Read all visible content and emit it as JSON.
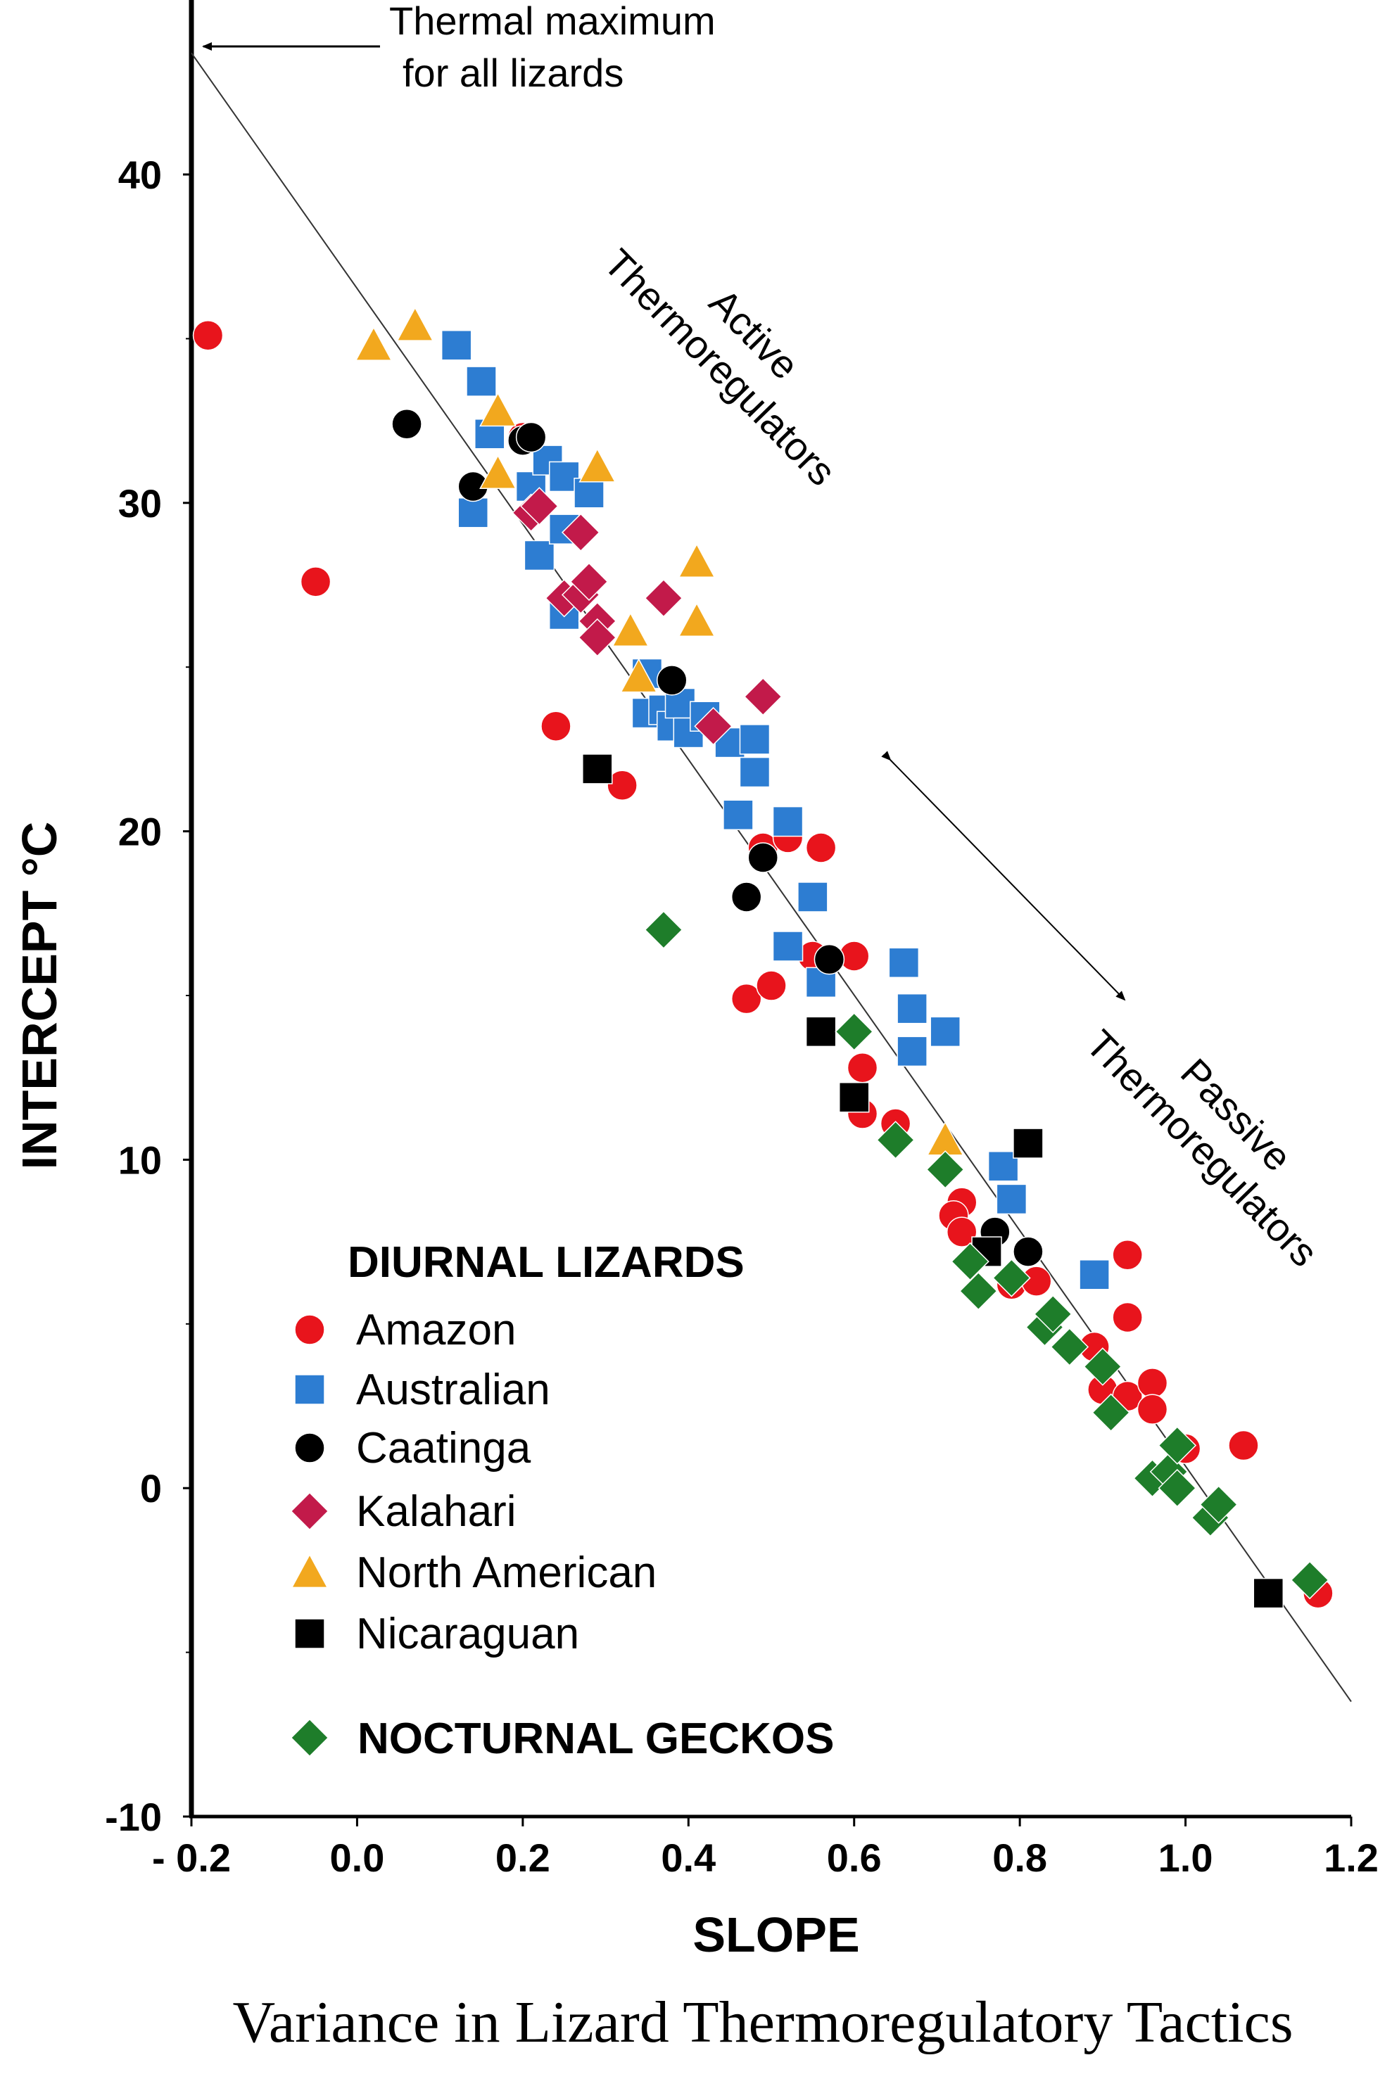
{
  "chart_data": {
    "type": "scatter",
    "title": "",
    "caption": "Variance in Lizard Thermoregulatory Tactics",
    "xlabel": "SLOPE",
    "ylabel": "INTERCEPT °C",
    "xlim": [
      -0.2,
      1.2
    ],
    "ylim": [
      -10,
      44
    ],
    "x_ticks": [
      {
        "value": -0.2,
        "label": "- 0.2"
      },
      {
        "value": 0.0,
        "label": "0.0"
      },
      {
        "value": 0.2,
        "label": "0.2"
      },
      {
        "value": 0.4,
        "label": "0.4"
      },
      {
        "value": 0.6,
        "label": "0.6"
      },
      {
        "value": 0.8,
        "label": "0.8"
      },
      {
        "value": 1.0,
        "label": "1.0"
      },
      {
        "value": 1.2,
        "label": "1.2"
      }
    ],
    "y_ticks": [
      {
        "value": 40,
        "label": "40"
      },
      {
        "value": 30,
        "label": "30"
      },
      {
        "value": 20,
        "label": "20"
      },
      {
        "value": 10,
        "label": "10"
      },
      {
        "value": 0,
        "label": "0"
      },
      {
        "value": -10,
        "label": "-10"
      }
    ],
    "grid": false,
    "legend_position": "bottom-left",
    "reference_line": {
      "x": [
        -0.2,
        1.2
      ],
      "y": [
        43.7,
        -6.5
      ]
    },
    "annotations": {
      "thermal_max_line1": "Thermal maximum",
      "thermal_max_line2": "for all lizards",
      "active_line1": "Active",
      "active_line2": "Thermoregulators",
      "passive_line1": "Passive",
      "passive_line2": "Thermoregulators"
    },
    "legend": {
      "diurnal_heading": "DIURNAL LIZARDS",
      "nocturnal_heading": "NOCTURNAL GECKOS"
    },
    "series": [
      {
        "name": "Amazon",
        "marker": "circle",
        "color": "#e8141c",
        "points": [
          [
            -0.18,
            35.1
          ],
          [
            -0.05,
            27.6
          ],
          [
            0.2,
            32.0
          ],
          [
            0.24,
            23.2
          ],
          [
            0.32,
            21.4
          ],
          [
            0.47,
            14.9
          ],
          [
            0.5,
            15.3
          ],
          [
            0.49,
            19.5
          ],
          [
            0.52,
            19.8
          ],
          [
            0.56,
            19.5
          ],
          [
            0.6,
            16.2
          ],
          [
            0.55,
            16.2
          ],
          [
            0.61,
            12.8
          ],
          [
            0.61,
            11.4
          ],
          [
            0.65,
            11.1
          ],
          [
            0.73,
            8.7
          ],
          [
            0.72,
            8.3
          ],
          [
            0.73,
            7.8
          ],
          [
            0.79,
            6.2
          ],
          [
            0.82,
            6.3
          ],
          [
            0.89,
            4.3
          ],
          [
            0.93,
            7.1
          ],
          [
            0.93,
            5.2
          ],
          [
            0.9,
            3.0
          ],
          [
            0.93,
            2.8
          ],
          [
            0.96,
            3.2
          ],
          [
            0.96,
            2.4
          ],
          [
            1.0,
            1.2
          ],
          [
            1.07,
            1.3
          ],
          [
            1.16,
            -3.2
          ]
        ]
      },
      {
        "name": "Australian",
        "marker": "square",
        "color": "#2d7dd2",
        "points": [
          [
            0.12,
            34.8
          ],
          [
            0.15,
            33.7
          ],
          [
            0.16,
            32.1
          ],
          [
            0.14,
            29.7
          ],
          [
            0.21,
            30.5
          ],
          [
            0.23,
            31.3
          ],
          [
            0.25,
            30.8
          ],
          [
            0.28,
            30.3
          ],
          [
            0.22,
            28.4
          ],
          [
            0.25,
            29.2
          ],
          [
            0.25,
            26.6
          ],
          [
            0.35,
            24.8
          ],
          [
            0.35,
            23.6
          ],
          [
            0.37,
            23.7
          ],
          [
            0.38,
            23.2
          ],
          [
            0.39,
            23.9
          ],
          [
            0.4,
            23.0
          ],
          [
            0.42,
            23.5
          ],
          [
            0.45,
            22.7
          ],
          [
            0.48,
            22.8
          ],
          [
            0.48,
            21.8
          ],
          [
            0.46,
            20.5
          ],
          [
            0.52,
            20.3
          ],
          [
            0.55,
            18.0
          ],
          [
            0.52,
            16.5
          ],
          [
            0.56,
            15.4
          ],
          [
            0.66,
            16.0
          ],
          [
            0.67,
            14.6
          ],
          [
            0.67,
            13.3
          ],
          [
            0.71,
            13.9
          ],
          [
            0.78,
            9.8
          ],
          [
            0.79,
            8.8
          ],
          [
            0.89,
            6.5
          ]
        ]
      },
      {
        "name": "Caatinga",
        "marker": "circle",
        "color": "#000000",
        "points": [
          [
            0.06,
            32.4
          ],
          [
            0.14,
            30.5
          ],
          [
            0.2,
            31.9
          ],
          [
            0.21,
            32.0
          ],
          [
            0.38,
            24.6
          ],
          [
            0.47,
            18.0
          ],
          [
            0.49,
            19.2
          ],
          [
            0.57,
            16.1
          ],
          [
            0.77,
            7.8
          ],
          [
            0.81,
            7.2
          ]
        ]
      },
      {
        "name": "Kalahari",
        "marker": "diamond",
        "color": "#c21a4a",
        "points": [
          [
            0.21,
            29.7
          ],
          [
            0.22,
            29.9
          ],
          [
            0.27,
            29.1
          ],
          [
            0.25,
            27.1
          ],
          [
            0.27,
            27.2
          ],
          [
            0.28,
            27.6
          ],
          [
            0.29,
            26.4
          ],
          [
            0.29,
            25.9
          ],
          [
            0.37,
            27.1
          ],
          [
            0.43,
            23.2
          ],
          [
            0.49,
            24.1
          ]
        ]
      },
      {
        "name": "North American",
        "marker": "triangle",
        "color": "#f2a81e",
        "points": [
          [
            0.02,
            34.8
          ],
          [
            0.07,
            35.4
          ],
          [
            0.17,
            32.8
          ],
          [
            0.17,
            30.9
          ],
          [
            0.29,
            31.1
          ],
          [
            0.33,
            26.1
          ],
          [
            0.34,
            24.7
          ],
          [
            0.41,
            28.2
          ],
          [
            0.41,
            26.4
          ],
          [
            0.71,
            10.6
          ]
        ]
      },
      {
        "name": "Nicaraguan",
        "marker": "square",
        "color": "#000000",
        "points": [
          [
            0.29,
            21.9
          ],
          [
            0.56,
            13.9
          ],
          [
            0.6,
            11.9
          ],
          [
            0.76,
            7.2
          ],
          [
            0.81,
            10.5
          ],
          [
            1.1,
            -3.2
          ]
        ]
      },
      {
        "name": "NOCTURNAL GECKOS",
        "marker": "diamond",
        "color": "#1e7d2a",
        "points": [
          [
            0.37,
            17.0
          ],
          [
            0.6,
            13.9
          ],
          [
            0.65,
            10.6
          ],
          [
            0.71,
            9.7
          ],
          [
            0.74,
            6.9
          ],
          [
            0.75,
            6.0
          ],
          [
            0.79,
            6.4
          ],
          [
            0.83,
            4.9
          ],
          [
            0.84,
            5.3
          ],
          [
            0.86,
            4.3
          ],
          [
            0.9,
            3.7
          ],
          [
            0.91,
            2.3
          ],
          [
            0.96,
            0.3
          ],
          [
            0.98,
            0.5
          ],
          [
            0.99,
            1.3
          ],
          [
            0.99,
            0.0
          ],
          [
            1.03,
            -0.9
          ],
          [
            1.04,
            -0.5
          ],
          [
            1.15,
            -2.8
          ]
        ]
      }
    ]
  }
}
